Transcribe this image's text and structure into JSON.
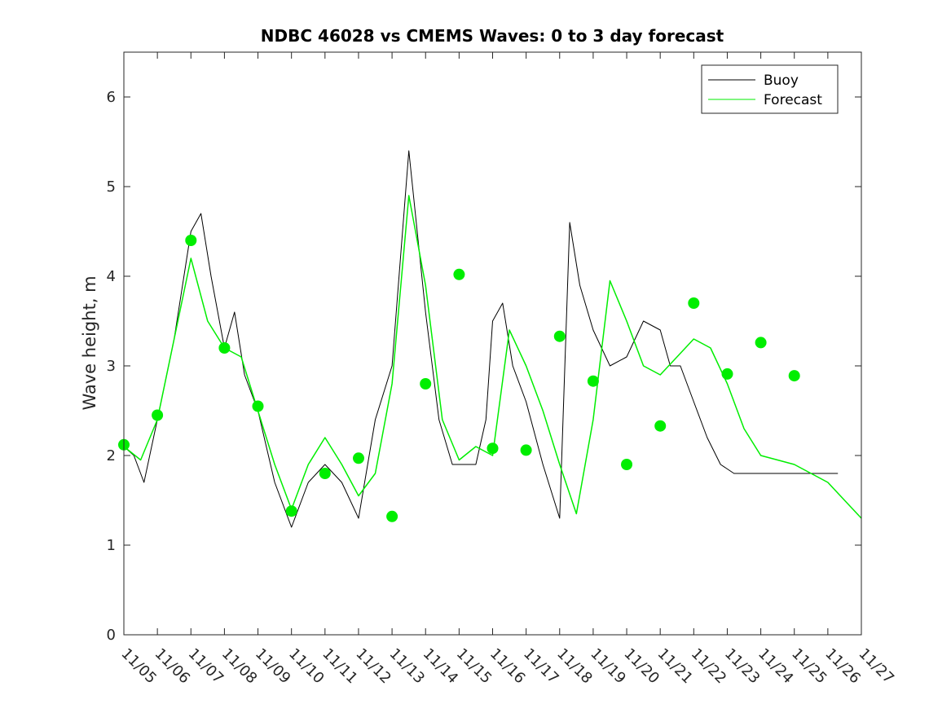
{
  "chart_data": {
    "type": "line",
    "title": "NDBC 46028 vs CMEMS Waves: 0 to 3 day forecast",
    "xlabel": "",
    "ylabel": "Wave height, m",
    "ylim": [
      0,
      6.5
    ],
    "xlim": [
      0,
      22
    ],
    "grid": false,
    "legend_position": "top-right",
    "x_tick_labels": [
      "11/05",
      "11/06",
      "11/07",
      "11/08",
      "11/09",
      "11/10",
      "11/11",
      "11/12",
      "11/13",
      "11/14",
      "11/15",
      "11/16",
      "11/17",
      "11/18",
      "11/19",
      "11/20",
      "11/21",
      "11/22",
      "11/23",
      "11/24",
      "11/25",
      "11/26",
      "11/27"
    ],
    "y_ticks": [
      0,
      1,
      2,
      3,
      4,
      5,
      6
    ],
    "colors": {
      "buoy": "#000000",
      "forecast": "#00ee00"
    },
    "series": [
      {
        "name": "Buoy",
        "x": [
          0,
          0.3,
          0.6,
          1.0,
          1.5,
          2.0,
          2.3,
          2.6,
          3.0,
          3.3,
          3.6,
          4.0,
          4.5,
          5.0,
          5.5,
          6.0,
          6.5,
          7.0,
          7.5,
          8.0,
          8.5,
          9.0,
          9.4,
          9.8,
          10.2,
          10.5,
          10.8,
          11.0,
          11.3,
          11.6,
          12.0,
          12.5,
          13.0,
          13.3,
          13.6,
          14.0,
          14.5,
          15.0,
          15.5,
          16.0,
          16.3,
          16.6,
          17.0,
          17.4,
          17.8,
          18.2,
          18.6,
          19.0,
          19.5,
          20.0,
          20.5,
          21.0,
          21.3
        ],
        "values": [
          2.1,
          2.0,
          1.7,
          2.4,
          3.3,
          4.5,
          4.7,
          4.0,
          3.2,
          3.6,
          2.9,
          2.5,
          1.7,
          1.2,
          1.7,
          1.9,
          1.7,
          1.3,
          2.4,
          3.0,
          5.4,
          3.6,
          2.4,
          1.9,
          1.9,
          1.9,
          2.4,
          3.5,
          3.7,
          3.0,
          2.6,
          1.9,
          1.3,
          4.6,
          3.9,
          3.4,
          3.0,
          3.1,
          3.5,
          3.4,
          3.0,
          3.0,
          2.6,
          2.2,
          1.9,
          1.8,
          1.8,
          1.8,
          1.8,
          1.8,
          1.8,
          1.8,
          1.8
        ]
      },
      {
        "name": "Forecast",
        "x": [
          0,
          0.5,
          1.0,
          1.5,
          2.0,
          2.5,
          3.0,
          3.5,
          4.0,
          4.5,
          5.0,
          5.5,
          6.0,
          6.5,
          7.0,
          7.5,
          8.0,
          8.5,
          9.0,
          9.5,
          10.0,
          10.5,
          11.0,
          11.5,
          12.0,
          12.5,
          13.0,
          13.5,
          14.0,
          14.5,
          15.0,
          15.5,
          16.0,
          16.5,
          17.0,
          17.5,
          18.0,
          18.5,
          19.0,
          19.5,
          20.0,
          20.5,
          21.0,
          21.5,
          22.0
        ],
        "values": [
          2.1,
          1.95,
          2.4,
          3.3,
          4.2,
          3.5,
          3.2,
          3.1,
          2.5,
          1.9,
          1.4,
          1.9,
          2.2,
          1.9,
          1.55,
          1.8,
          2.8,
          4.9,
          3.9,
          2.4,
          1.95,
          2.1,
          2.0,
          3.4,
          3.0,
          2.5,
          1.9,
          1.35,
          2.4,
          3.95,
          3.5,
          3.0,
          2.9,
          3.1,
          3.3,
          3.2,
          2.8,
          2.3,
          2.0,
          1.95,
          1.9,
          1.8,
          1.7,
          1.5,
          1.3
        ]
      }
    ],
    "markers": {
      "x": [
        0,
        1,
        2,
        3,
        4,
        5,
        6,
        7,
        8,
        9,
        10,
        11,
        12,
        13,
        14,
        15,
        16,
        17,
        18,
        19,
        20
      ],
      "values": [
        2.12,
        2.45,
        4.4,
        3.2,
        2.55,
        1.38,
        1.8,
        1.97,
        1.32,
        2.8,
        4.02,
        2.08,
        2.06,
        3.33,
        2.83,
        1.9,
        2.33,
        3.7,
        2.91,
        3.26,
        2.89
      ]
    }
  }
}
